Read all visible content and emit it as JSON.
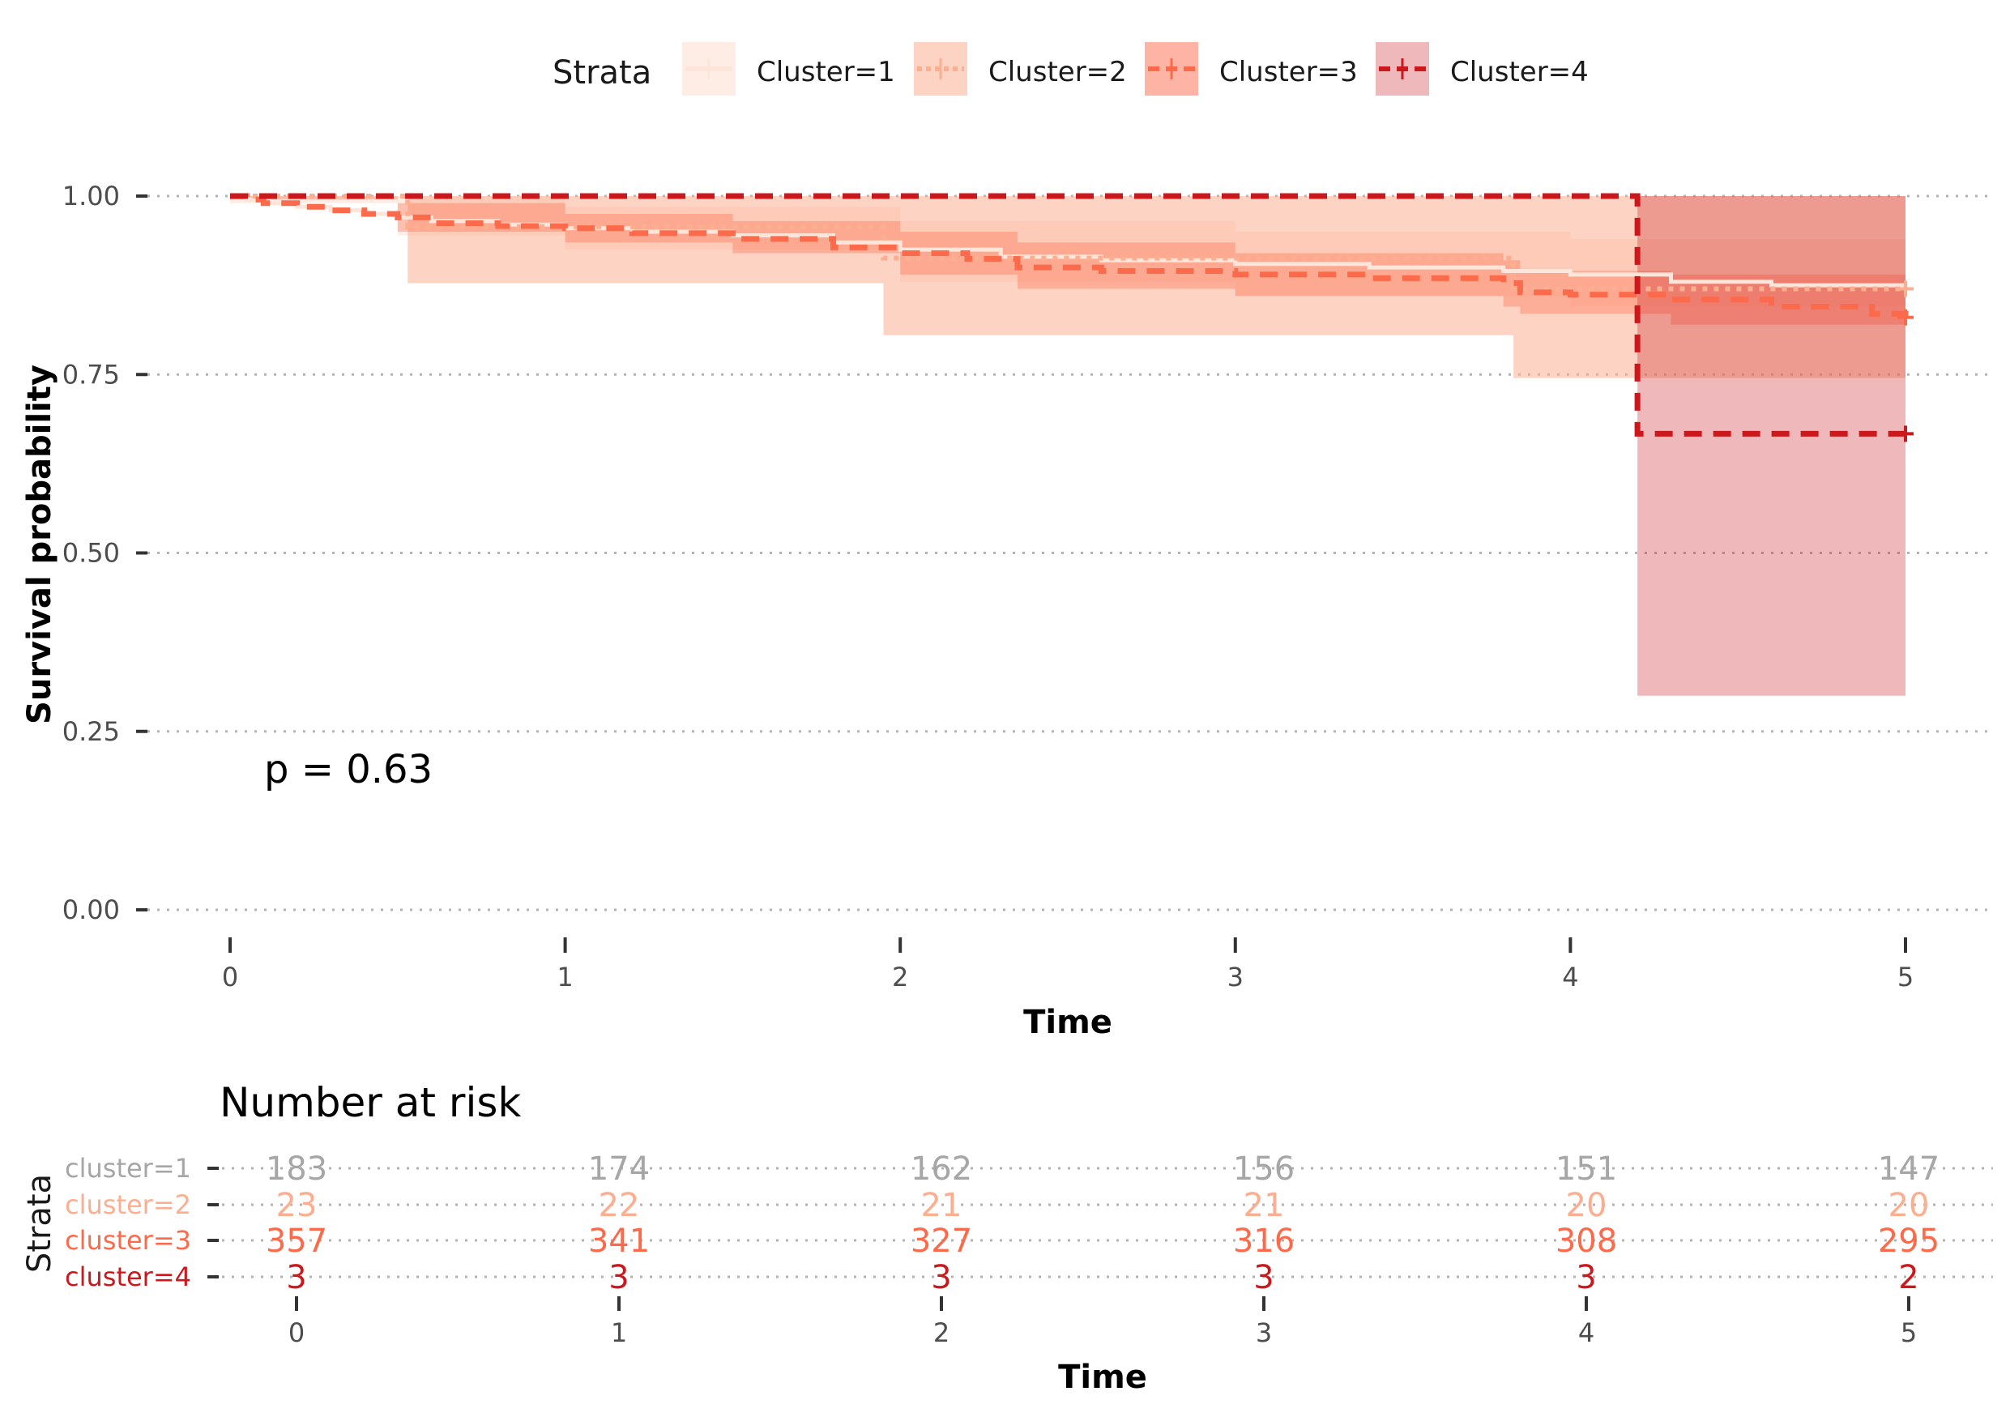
{
  "chart_data": [
    {
      "type": "line",
      "subtype": "kaplan-meier survival curve",
      "xlabel": "Time",
      "ylabel": "Survival probability",
      "xlim": [
        0,
        5
      ],
      "ylim": [
        0,
        1
      ],
      "x_ticks": [
        "0",
        "1",
        "2",
        "3",
        "4",
        "5"
      ],
      "y_ticks": [
        "0.00",
        "0.25",
        "0.50",
        "0.75",
        "1.00"
      ],
      "grid": "dotted horizontal",
      "legend": {
        "title": "Strata",
        "placement": "top",
        "items": [
          "Cluster=1",
          "Cluster=2",
          "Cluster=3",
          "Cluster=4"
        ]
      },
      "annotation": "p = 0.63",
      "series": [
        {
          "name": "Cluster=1",
          "color": "#fee5d9",
          "dash": "solid",
          "steps": [
            [
              0,
              1.0
            ],
            [
              0.05,
              0.995
            ],
            [
              0.1,
              0.99
            ],
            [
              0.2,
              0.985
            ],
            [
              0.3,
              0.98
            ],
            [
              0.4,
              0.975
            ],
            [
              0.5,
              0.97
            ],
            [
              0.6,
              0.965
            ],
            [
              0.8,
              0.96
            ],
            [
              1.0,
              0.955
            ],
            [
              1.2,
              0.95
            ],
            [
              1.5,
              0.945
            ],
            [
              1.8,
              0.935
            ],
            [
              2.0,
              0.925
            ],
            [
              2.3,
              0.915
            ],
            [
              2.6,
              0.91
            ],
            [
              3.0,
              0.905
            ],
            [
              3.4,
              0.9
            ],
            [
              3.8,
              0.895
            ],
            [
              4.0,
              0.89
            ],
            [
              4.3,
              0.88
            ],
            [
              4.6,
              0.875
            ],
            [
              5.0,
              0.87
            ]
          ],
          "ci_band": [
            [
              0,
              1.0,
              0.99
            ],
            [
              0.5,
              1.0,
              0.945
            ],
            [
              1.0,
              0.985,
              0.925
            ],
            [
              2.0,
              0.965,
              0.88
            ],
            [
              3.0,
              0.95,
              0.86
            ],
            [
              4.0,
              0.94,
              0.845
            ],
            [
              5.0,
              0.93,
              0.825
            ]
          ]
        },
        {
          "name": "Cluster=2",
          "color": "#fcae91",
          "dash": "dotted",
          "steps": [
            [
              0,
              1.0
            ],
            [
              0.53,
              0.957
            ],
            [
              1.95,
              0.913
            ],
            [
              3.83,
              0.87
            ],
            [
              5.0,
              0.87
            ]
          ],
          "ci_band": [
            [
              0,
              1.0,
              1.0
            ],
            [
              0.53,
              1.0,
              0.878
            ],
            [
              1.95,
              1.0,
              0.805
            ],
            [
              3.83,
              1.0,
              0.745
            ],
            [
              5.0,
              1.0,
              0.745
            ]
          ]
        },
        {
          "name": "Cluster=3",
          "color": "#fb6a4a",
          "dash": "dashed",
          "steps": [
            [
              0,
              1.0
            ],
            [
              0.05,
              0.995
            ],
            [
              0.1,
              0.99
            ],
            [
              0.2,
              0.985
            ],
            [
              0.3,
              0.98
            ],
            [
              0.4,
              0.975
            ],
            [
              0.5,
              0.97
            ],
            [
              0.6,
              0.962
            ],
            [
              0.8,
              0.958
            ],
            [
              1.0,
              0.955
            ],
            [
              1.2,
              0.948
            ],
            [
              1.5,
              0.94
            ],
            [
              1.8,
              0.928
            ],
            [
              2.0,
              0.92
            ],
            [
              2.2,
              0.912
            ],
            [
              2.35,
              0.9
            ],
            [
              2.6,
              0.895
            ],
            [
              3.0,
              0.89
            ],
            [
              3.4,
              0.885
            ],
            [
              3.8,
              0.878
            ],
            [
              3.85,
              0.865
            ],
            [
              4.0,
              0.862
            ],
            [
              4.3,
              0.855
            ],
            [
              4.6,
              0.845
            ],
            [
              4.9,
              0.835
            ],
            [
              5.0,
              0.83
            ]
          ],
          "ci_band": [
            [
              0,
              1.0,
              0.995
            ],
            [
              0.5,
              0.99,
              0.95
            ],
            [
              1.0,
              0.975,
              0.935
            ],
            [
              1.5,
              0.965,
              0.92
            ],
            [
              2.0,
              0.95,
              0.89
            ],
            [
              2.35,
              0.935,
              0.87
            ],
            [
              3.0,
              0.92,
              0.86
            ],
            [
              3.8,
              0.91,
              0.845
            ],
            [
              3.85,
              0.895,
              0.835
            ],
            [
              4.3,
              0.89,
              0.82
            ],
            [
              5.0,
              0.86,
              0.795
            ]
          ]
        },
        {
          "name": "Cluster=4",
          "color": "#cb181d",
          "dash": "dashed",
          "steps": [
            [
              0,
              1.0
            ],
            [
              4.2,
              0.667
            ],
            [
              5.0,
              0.667
            ]
          ],
          "ci_band": [
            [
              0,
              1.0,
              1.0
            ],
            [
              4.2,
              1.0,
              0.3
            ],
            [
              5.0,
              1.0,
              0.3
            ]
          ]
        }
      ]
    },
    {
      "type": "table",
      "title": "Number at risk",
      "xlabel": "Time",
      "ylabel": "Strata",
      "x_ticks": [
        "0",
        "1",
        "2",
        "3",
        "4",
        "5"
      ],
      "rows": [
        {
          "label": "cluster=1",
          "color": "#a6a6a6",
          "values": [
            183,
            174,
            162,
            156,
            151,
            147
          ]
        },
        {
          "label": "cluster=2",
          "color": "#fcae91",
          "values": [
            23,
            22,
            21,
            21,
            20,
            20
          ]
        },
        {
          "label": "cluster=3",
          "color": "#fb6a4a",
          "values": [
            357,
            341,
            327,
            316,
            308,
            295
          ]
        },
        {
          "label": "cluster=4",
          "color": "#cb181d",
          "values": [
            3,
            3,
            3,
            3,
            3,
            2
          ]
        }
      ]
    }
  ]
}
